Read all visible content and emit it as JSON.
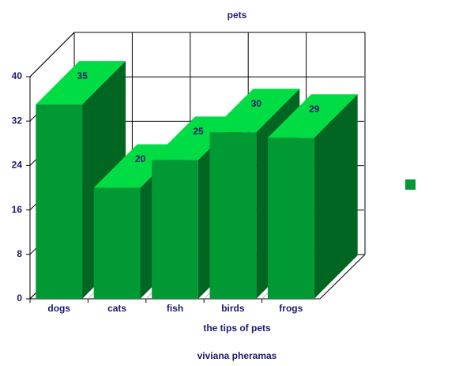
{
  "chart_data": {
    "type": "bar",
    "title": "pets",
    "xlabel": "the tips of pets",
    "subtitle": "viviana pheramas",
    "categories": [
      "dogs",
      "cats",
      "fish",
      "birds",
      "frogs"
    ],
    "values": [
      35,
      20,
      25,
      30,
      29
    ],
    "color": "#009933",
    "ylim": [
      0,
      40
    ],
    "yticks": [
      0,
      8,
      16,
      24,
      32,
      40
    ],
    "grid": true
  }
}
